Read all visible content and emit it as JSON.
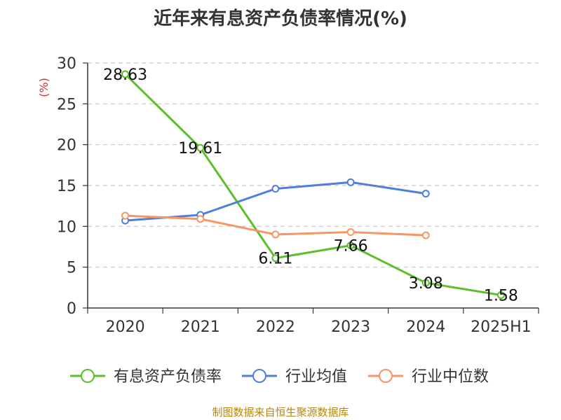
{
  "title": "近年来有息资产负债率情况(%)",
  "source": "制图数据来自恒生聚源数据库",
  "chart_data": {
    "type": "line",
    "title": "近年来有息资产负债率情况(%)",
    "ylabel": "(%)",
    "xlabel": "",
    "categories": [
      "2020",
      "2021",
      "2022",
      "2023",
      "2024",
      "2025H1"
    ],
    "ylim": [
      0,
      30
    ],
    "yticks": [
      0,
      5,
      10,
      15,
      20,
      25,
      30
    ],
    "grid": true,
    "legend_position": "bottom",
    "series": [
      {
        "name": "有息资产负债率",
        "color": "#5cbf2a",
        "values": [
          28.63,
          19.61,
          6.11,
          7.66,
          3.08,
          1.58
        ],
        "labels": [
          "28.63",
          "19.61",
          "6.11",
          "7.66",
          "3.08",
          "1.58"
        ]
      },
      {
        "name": "行业均值",
        "color": "#4e7fdb",
        "values": [
          10.7,
          11.4,
          14.6,
          15.4,
          14.0,
          null
        ]
      },
      {
        "name": "行业中位数",
        "color": "#f79563",
        "values": [
          11.3,
          10.9,
          9.0,
          9.3,
          8.9,
          null
        ]
      }
    ]
  }
}
